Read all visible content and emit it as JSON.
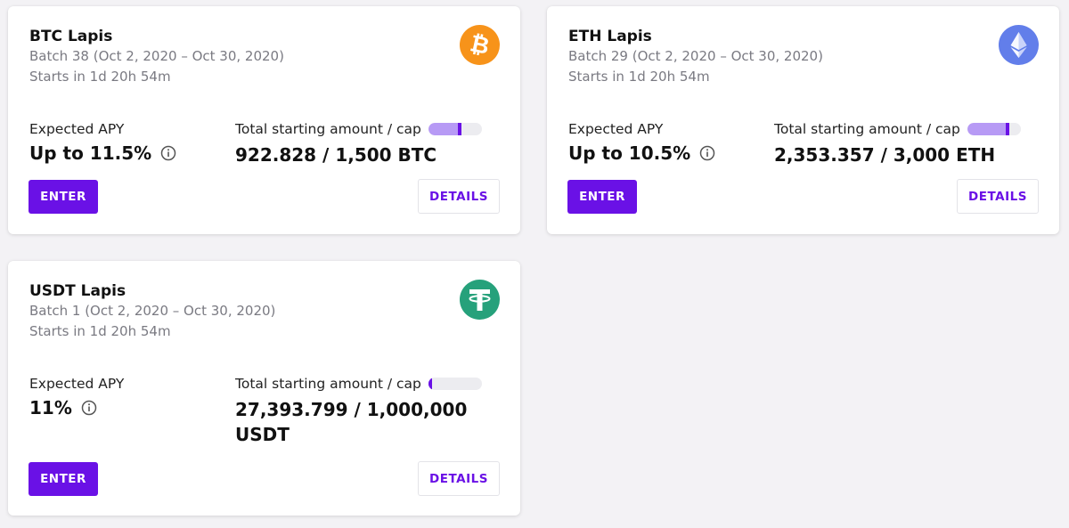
{
  "colors": {
    "accent": "#6a11e6",
    "progress_fill": "#b79af5",
    "btc": "#f7931a",
    "eth": "#627eea",
    "usdt": "#26a17b"
  },
  "cards": [
    {
      "title": "BTC Lapis",
      "batch": "Batch 38 (Oct 2, 2020 – Oct 30, 2020)",
      "starts": "Starts in 1d 20h 54m",
      "icon": "bitcoin-icon",
      "apy_label": "Expected APY",
      "apy_value": "Up to 11.5%",
      "amount_label": "Total starting amount / cap",
      "amount_value": "922.828 / 1,500 BTC",
      "progress": 0.615,
      "enter_label": "ENTER",
      "details_label": "DETAILS"
    },
    {
      "title": "ETH Lapis",
      "batch": "Batch 29 (Oct 2, 2020 – Oct 30, 2020)",
      "starts": "Starts in 1d 20h 54m",
      "icon": "ethereum-icon",
      "apy_label": "Expected APY",
      "apy_value": "Up to 10.5%",
      "amount_label": "Total starting amount / cap",
      "amount_value": "2,353.357 / 3,000 ETH",
      "progress": 0.784,
      "enter_label": "ENTER",
      "details_label": "DETAILS"
    },
    {
      "title": "USDT Lapis",
      "batch": "Batch 1 (Oct 2, 2020 – Oct 30, 2020)",
      "starts": "Starts in 1d 20h 54m",
      "icon": "tether-icon",
      "apy_label": "Expected APY",
      "apy_value": "11%",
      "amount_label": "Total starting amount / cap",
      "amount_value": "27,393.799 / 1,000,000 USDT",
      "progress": 0.027,
      "enter_label": "ENTER",
      "details_label": "DETAILS"
    }
  ]
}
